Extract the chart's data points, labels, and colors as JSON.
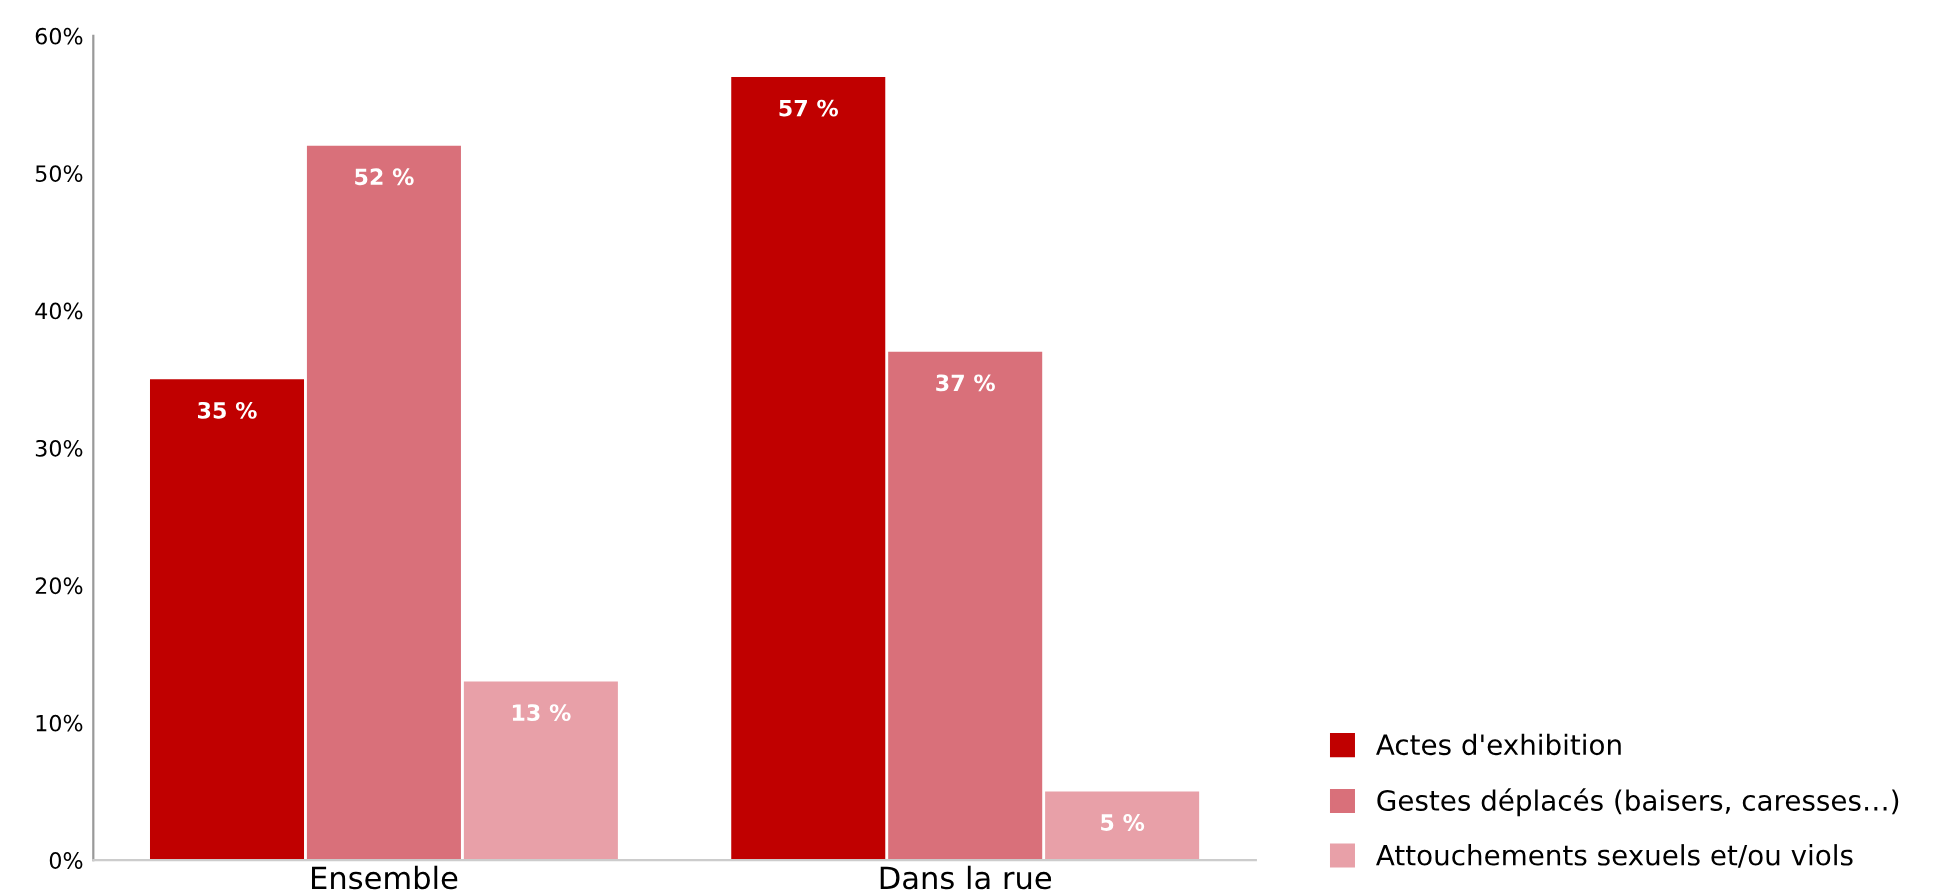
{
  "chart_data": {
    "type": "bar",
    "categories": [
      "Ensemble",
      "Dans la rue"
    ],
    "series": [
      {
        "name": "Actes d'exhibition",
        "color": "#c00000",
        "values": [
          35,
          57
        ],
        "value_labels": [
          "35 %",
          "57 %"
        ]
      },
      {
        "name": "Gestes déplacés (baisers, caresses…)",
        "color": "#d9707a",
        "values": [
          52,
          37
        ],
        "value_labels": [
          "52 %",
          "37 %"
        ]
      },
      {
        "name": "Attouchements sexuels et/ou viols",
        "color": "#e8a0a8",
        "values": [
          13,
          5
        ],
        "value_labels": [
          "13 %",
          "5 %"
        ]
      }
    ],
    "ylim": [
      0,
      60
    ],
    "yticks": [
      {
        "value": 0,
        "label": "0%"
      },
      {
        "value": 10,
        "label": "10%"
      },
      {
        "value": 20,
        "label": "20%"
      },
      {
        "value": 30,
        "label": "30%"
      },
      {
        "value": 40,
        "label": "40%"
      },
      {
        "value": 50,
        "label": "50%"
      },
      {
        "value": 60,
        "label": "60%"
      }
    ],
    "grid": false,
    "legend": "bottom right"
  }
}
